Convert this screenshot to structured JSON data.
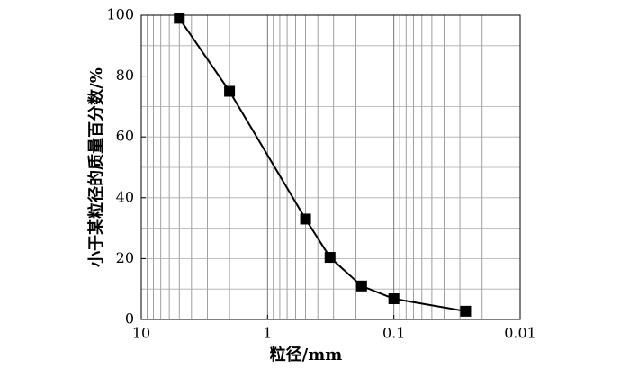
{
  "chart_data": {
    "type": "line",
    "x_label": "粒径/mm",
    "y_label": "小于某粒径的质量百分数/%",
    "x": [
      5,
      2,
      0.5,
      0.32,
      0.18,
      0.1,
      0.027
    ],
    "values": [
      99,
      75,
      33,
      20.4,
      11,
      6.8,
      2.7
    ],
    "color": "#000000",
    "marker": "square",
    "xlim": [
      10,
      0.01
    ],
    "xticks": [
      10,
      1,
      0.1,
      0.01
    ],
    "x_log": true,
    "ylim": [
      0,
      100
    ],
    "yticks": [
      0,
      20,
      40,
      60,
      80,
      100
    ],
    "grid": true
  }
}
